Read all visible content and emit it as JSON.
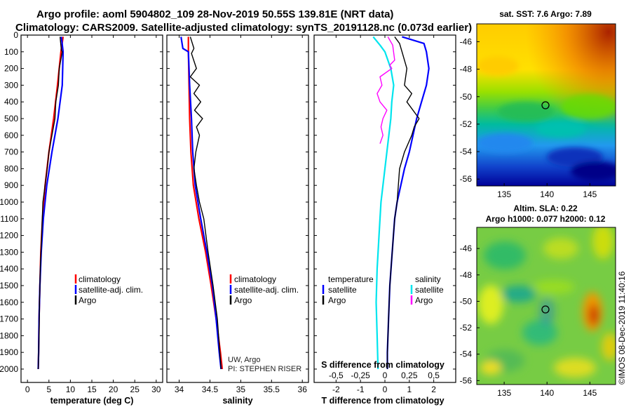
{
  "title_line1": "Argo profile: aoml 5904802_109 28-Nov-2019 50.55S 139.81E (NRT data)",
  "title_line2": "Climatology: CARS2009. Satellite-adjusted climatology: synTS_20191128.nc (0.073d earlier)",
  "colors": {
    "climatology": "#ff0000",
    "satellite": "#0000ff",
    "argo": "#000000",
    "salinity_satellite": "#00e5ee",
    "salinity_argo": "#ff00ff"
  },
  "chart_data": [
    {
      "type": "line",
      "name": "temperature-panel",
      "xlabel": "temperature (deg C)",
      "xlim": [
        -1.5,
        31.5
      ],
      "ylim": [
        0,
        2080
      ],
      "y_inverted": true,
      "xticks": [
        "0",
        "5",
        "10",
        "15",
        "20",
        "25",
        "30"
      ],
      "yticks": [
        "0",
        "100",
        "200",
        "300",
        "400",
        "500",
        "600",
        "700",
        "800",
        "900",
        "1000",
        "1100",
        "1200",
        "1300",
        "1400",
        "1500",
        "1600",
        "1700",
        "1800",
        "1900",
        "2000"
      ],
      "legend": [
        "climatology",
        "satellite-adj. clim.",
        "Argo"
      ],
      "series": [
        {
          "name": "climatology",
          "color": "#ff0000",
          "points": [
            [
              8.3,
              10
            ],
            [
              7.8,
              100
            ],
            [
              7.0,
              300
            ],
            [
              6.1,
              500
            ],
            [
              5.0,
              700
            ],
            [
              4.1,
              900
            ],
            [
              3.5,
              1100
            ],
            [
              3.1,
              1300
            ],
            [
              2.9,
              1500
            ],
            [
              2.7,
              1700
            ],
            [
              2.6,
              1900
            ],
            [
              2.5,
              2000
            ]
          ]
        },
        {
          "name": "satellite-adj. clim.",
          "color": "#0000ff",
          "points": [
            [
              7.9,
              10
            ],
            [
              8.3,
              100
            ],
            [
              8.1,
              300
            ],
            [
              7.1,
              500
            ],
            [
              5.7,
              700
            ],
            [
              4.5,
              900
            ],
            [
              3.7,
              1100
            ],
            [
              3.2,
              1300
            ],
            [
              2.9,
              1500
            ],
            [
              2.7,
              1700
            ],
            [
              2.6,
              1900
            ],
            [
              2.5,
              2000
            ]
          ]
        },
        {
          "name": "Argo",
          "color": "#000000",
          "points": [
            [
              7.6,
              10
            ],
            [
              7.9,
              90
            ],
            [
              8.1,
              100
            ],
            [
              7.4,
              200
            ],
            [
              7.2,
              300
            ],
            [
              6.6,
              400
            ],
            [
              6.4,
              500
            ],
            [
              5.7,
              600
            ],
            [
              5.0,
              700
            ],
            [
              4.6,
              800
            ],
            [
              4.1,
              900
            ],
            [
              3.6,
              1000
            ],
            [
              3.3,
              1200
            ],
            [
              3.0,
              1400
            ],
            [
              2.8,
              1600
            ],
            [
              2.7,
              1800
            ],
            [
              2.6,
              1900
            ],
            [
              2.5,
              2000
            ]
          ]
        }
      ]
    },
    {
      "type": "line",
      "name": "salinity-panel",
      "xlabel": "salinity",
      "xlim": [
        33.8,
        36.1
      ],
      "ylim": [
        0,
        2080
      ],
      "y_inverted": true,
      "xticks": [
        "34",
        "34.5",
        "35",
        "35.5",
        "36"
      ],
      "legend": [
        "climatology",
        "satellite-adj. clim.",
        "Argo"
      ],
      "annotation_1": "UW, Argo",
      "annotation_2": "PI: STEPHEN RISER",
      "series": [
        {
          "name": "climatology",
          "color": "#ff0000",
          "points": [
            [
              34.15,
              10
            ],
            [
              34.15,
              100
            ],
            [
              34.16,
              300
            ],
            [
              34.17,
              500
            ],
            [
              34.19,
              700
            ],
            [
              34.23,
              900
            ],
            [
              34.32,
              1100
            ],
            [
              34.43,
              1300
            ],
            [
              34.52,
              1500
            ],
            [
              34.6,
              1700
            ],
            [
              34.67,
              1900
            ],
            [
              34.7,
              2000
            ]
          ]
        },
        {
          "name": "satellite-adj. clim.",
          "color": "#0000ff",
          "points": [
            [
              34.03,
              10
            ],
            [
              34.06,
              80
            ],
            [
              34.15,
              100
            ],
            [
              34.17,
              300
            ],
            [
              34.2,
              500
            ],
            [
              34.22,
              700
            ],
            [
              34.26,
              900
            ],
            [
              34.35,
              1100
            ],
            [
              34.45,
              1300
            ],
            [
              34.54,
              1500
            ],
            [
              34.6,
              1700
            ],
            [
              34.65,
              1900
            ],
            [
              34.68,
              2000
            ]
          ]
        },
        {
          "name": "Argo",
          "color": "#000000",
          "points": [
            [
              34.18,
              10
            ],
            [
              34.24,
              80
            ],
            [
              34.2,
              110
            ],
            [
              34.28,
              200
            ],
            [
              34.18,
              250
            ],
            [
              34.33,
              300
            ],
            [
              34.24,
              350
            ],
            [
              34.35,
              400
            ],
            [
              34.25,
              450
            ],
            [
              34.38,
              500
            ],
            [
              34.28,
              550
            ],
            [
              34.33,
              600
            ],
            [
              34.27,
              700
            ],
            [
              34.24,
              800
            ],
            [
              34.28,
              900
            ],
            [
              34.33,
              1000
            ],
            [
              34.4,
              1100
            ],
            [
              34.47,
              1300
            ],
            [
              34.55,
              1500
            ],
            [
              34.62,
              1700
            ],
            [
              34.66,
              1900
            ],
            [
              34.68,
              2000
            ]
          ]
        }
      ]
    },
    {
      "type": "line",
      "name": "difference-panel",
      "xlabel": "T difference from climatology",
      "xlabel_top": "S difference from climatology",
      "xlim": [
        -2.9,
        2.9
      ],
      "ylim": [
        0,
        2080
      ],
      "y_inverted": true,
      "xticks": [
        "-2",
        "-1",
        "0",
        "1",
        "2"
      ],
      "top_xticks": [
        "-0.5",
        "-0.25",
        "0",
        "0.25",
        "0.5"
      ],
      "legend_left_title": "temperature",
      "legend_right_title": "salinity",
      "legend_left": [
        "satellite",
        "Argo"
      ],
      "legend_right": [
        "satellite",
        "Argo"
      ],
      "series": [
        {
          "name": "temperature satellite",
          "color": "#0000ff",
          "points": [
            [
              0.7,
              10
            ],
            [
              1.6,
              50
            ],
            [
              1.7,
              100
            ],
            [
              1.8,
              200
            ],
            [
              1.7,
              300
            ],
            [
              1.5,
              400
            ],
            [
              1.3,
              500
            ],
            [
              1.0,
              700
            ],
            [
              0.8,
              800
            ],
            [
              0.5,
              1000
            ],
            [
              0.4,
              1100
            ],
            [
              0.3,
              1300
            ],
            [
              0.2,
              1500
            ],
            [
              0.15,
              1700
            ],
            [
              0.1,
              1900
            ],
            [
              0.1,
              2000
            ]
          ]
        },
        {
          "name": "temperature Argo",
          "color": "#000000",
          "points": [
            [
              0.4,
              10
            ],
            [
              0.6,
              50
            ],
            [
              0.7,
              100
            ],
            [
              0.9,
              200
            ],
            [
              0.8,
              300
            ],
            [
              1.1,
              350
            ],
            [
              0.9,
              400
            ],
            [
              1.4,
              500
            ],
            [
              1.2,
              550
            ],
            [
              1.1,
              600
            ],
            [
              0.8,
              700
            ],
            [
              0.6,
              800
            ],
            [
              0.5,
              1000
            ],
            [
              0.4,
              1100
            ],
            [
              0.3,
              1300
            ],
            [
              0.2,
              1500
            ],
            [
              0.15,
              1700
            ],
            [
              0.1,
              1900
            ],
            [
              0.1,
              2000
            ]
          ]
        },
        {
          "name": "salinity satellite",
          "color": "#00e5ee",
          "points": [
            [
              -0.12,
              10
            ],
            [
              -0.05,
              60
            ],
            [
              0.0,
              100
            ],
            [
              0.06,
              200
            ],
            [
              0.09,
              300
            ],
            [
              0.07,
              400
            ],
            [
              0.06,
              500
            ],
            [
              0.04,
              600
            ],
            [
              0.02,
              700
            ],
            [
              0.0,
              800
            ],
            [
              -0.02,
              900
            ],
            [
              -0.04,
              1000
            ],
            [
              -0.06,
              1200
            ],
            [
              -0.08,
              1400
            ],
            [
              -0.09,
              1600
            ],
            [
              -0.08,
              1800
            ],
            [
              -0.07,
              2000
            ]
          ]
        },
        {
          "name": "salinity Argo",
          "color": "#ff00ff",
          "points": [
            [
              0.03,
              10
            ],
            [
              0.08,
              60
            ],
            [
              0.1,
              150
            ],
            [
              0.05,
              180
            ],
            [
              0.07,
              200
            ],
            [
              -0.05,
              250
            ],
            [
              -0.03,
              300
            ],
            [
              -0.08,
              350
            ],
            [
              -0.05,
              400
            ],
            [
              0.02,
              450
            ],
            [
              -0.02,
              500
            ],
            [
              -0.04,
              550
            ],
            [
              -0.02,
              600
            ],
            [
              -0.05,
              650
            ]
          ]
        }
      ]
    }
  ],
  "map_top": {
    "title": "sat. SST: 7.6 Argo: 7.89",
    "lat_ticks": [
      "-46",
      "-48",
      "-50",
      "-52",
      "-54",
      "-56"
    ],
    "lon_ticks": [
      "135",
      "140",
      "145"
    ]
  },
  "map_bottom": {
    "title_line1": "Altim. SLA: 0.22",
    "title_line2": "Argo h1000: 0.077 h2000: 0.12",
    "lat_ticks": [
      "-46",
      "-48",
      "-50",
      "-52",
      "-54",
      "-56"
    ],
    "lon_ticks": [
      "135",
      "140",
      "145"
    ]
  },
  "watermark": "©IMOS 08-Dec-2019 11:40:16"
}
